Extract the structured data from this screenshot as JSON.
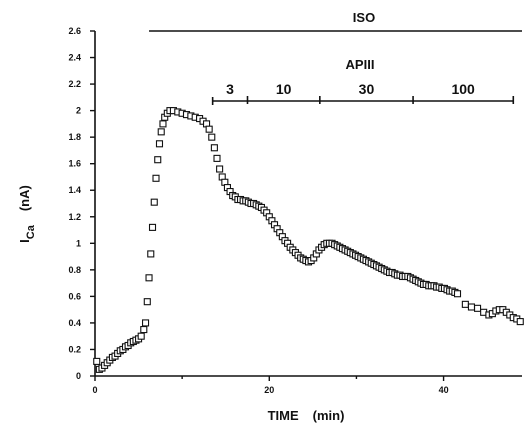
{
  "chart_data": {
    "type": "scatter",
    "title": "",
    "xlabel": "TIME",
    "xlabel_unit": "(min)",
    "ylabel_main": "I",
    "ylabel_sub": "Ca",
    "ylabel_unit": "(nA)",
    "xlim": [
      0,
      49
    ],
    "ylim": [
      0,
      2.6
    ],
    "x_ticks": [
      0,
      20,
      40
    ],
    "y_ticks": [
      0,
      0.2,
      0.4,
      0.6,
      0.8,
      1,
      1.2,
      1.4,
      1.6,
      1.8,
      2,
      2.2,
      2.4,
      2.6
    ],
    "y_tick_labels": [
      "0",
      "0.2",
      "0.4",
      "0.6",
      "0.8",
      "1",
      "1.2",
      "1.4",
      "1.6",
      "1.8",
      "2",
      "2.2",
      "2.4",
      "2.6"
    ],
    "x_minor_ticks": [
      10,
      30
    ],
    "grid": false,
    "marker": "open-square",
    "annotations": {
      "iso": {
        "label": "ISO",
        "x_start": 6.2,
        "x_end": 49
      },
      "apiii": {
        "label": "APIII",
        "x_start": 13.5,
        "x_end": 48,
        "segments": [
          {
            "label": "3",
            "x_start": 13.5,
            "x_end": 17.5
          },
          {
            "label": "10",
            "x_start": 17.5,
            "x_end": 25.8
          },
          {
            "label": "30",
            "x_start": 25.8,
            "x_end": 36.5
          },
          {
            "label": "100",
            "x_start": 36.5,
            "x_end": 48
          }
        ],
        "dividers": [
          17.5,
          25.8,
          36.5
        ]
      }
    },
    "series": [
      {
        "x": [
          0.2,
          0.5,
          0.8,
          1.1,
          1.4,
          1.7,
          2.0,
          2.3,
          2.6,
          2.9,
          3.2,
          3.5,
          3.8,
          4.1,
          4.4,
          4.7,
          5.0,
          5.3,
          5.6,
          5.8,
          6.0,
          6.2,
          6.4,
          6.6,
          6.8,
          7.0,
          7.2,
          7.4,
          7.6,
          7.8,
          8.0,
          8.3,
          8.6,
          9.0,
          9.5,
          10.0,
          10.5,
          11.0,
          11.5,
          12.0,
          12.4,
          12.8,
          13.1,
          13.4,
          13.7,
          14.0,
          14.3,
          14.6,
          14.9,
          15.2,
          15.5,
          15.8,
          16.1,
          16.4,
          16.7,
          17.0,
          17.3,
          17.6,
          17.9,
          18.2,
          18.5,
          18.8,
          19.1,
          19.4,
          19.7,
          20.0,
          20.3,
          20.6,
          20.9,
          21.2,
          21.5,
          21.8,
          22.1,
          22.4,
          22.7,
          23.0,
          23.3,
          23.6,
          23.9,
          24.2,
          24.5,
          24.8,
          25.1,
          25.4,
          25.7,
          26.0,
          26.3,
          26.6,
          26.9,
          27.2,
          27.5,
          27.8,
          28.1,
          28.4,
          28.7,
          29.0,
          29.3,
          29.6,
          29.9,
          30.2,
          30.5,
          30.8,
          31.1,
          31.4,
          31.7,
          32.0,
          32.3,
          32.6,
          32.9,
          33.2,
          33.5,
          33.8,
          34.1,
          34.4,
          34.7,
          35.0,
          35.3,
          35.6,
          35.9,
          36.2,
          36.5,
          36.8,
          37.1,
          37.4,
          37.7,
          38.0,
          38.3,
          38.6,
          38.9,
          39.2,
          39.5,
          39.8,
          40.1,
          40.4,
          40.7,
          41.0,
          41.3,
          41.6,
          42.5,
          43.2,
          43.9,
          44.6,
          45.2,
          45.6,
          46.0,
          46.4,
          46.8,
          47.2,
          47.6,
          48.0,
          48.4,
          48.8
        ],
        "y": [
          0.11,
          0.05,
          0.06,
          0.08,
          0.1,
          0.12,
          0.14,
          0.15,
          0.17,
          0.19,
          0.2,
          0.22,
          0.23,
          0.25,
          0.26,
          0.27,
          0.28,
          0.3,
          0.35,
          0.4,
          0.56,
          0.74,
          0.92,
          1.12,
          1.31,
          1.49,
          1.63,
          1.75,
          1.84,
          1.9,
          1.95,
          1.98,
          2.0,
          2.0,
          1.99,
          1.98,
          1.97,
          1.96,
          1.95,
          1.94,
          1.92,
          1.9,
          1.86,
          1.8,
          1.72,
          1.64,
          1.56,
          1.5,
          1.46,
          1.42,
          1.39,
          1.36,
          1.35,
          1.33,
          1.33,
          1.32,
          1.32,
          1.31,
          1.3,
          1.3,
          1.29,
          1.28,
          1.27,
          1.25,
          1.23,
          1.2,
          1.17,
          1.14,
          1.11,
          1.08,
          1.05,
          1.02,
          1.0,
          0.97,
          0.95,
          0.93,
          0.91,
          0.89,
          0.88,
          0.87,
          0.86,
          0.87,
          0.89,
          0.92,
          0.95,
          0.97,
          0.99,
          1.0,
          1.0,
          1.0,
          0.99,
          0.98,
          0.97,
          0.96,
          0.95,
          0.94,
          0.93,
          0.92,
          0.91,
          0.9,
          0.89,
          0.88,
          0.87,
          0.86,
          0.85,
          0.84,
          0.83,
          0.82,
          0.81,
          0.8,
          0.79,
          0.78,
          0.78,
          0.77,
          0.76,
          0.76,
          0.75,
          0.75,
          0.75,
          0.74,
          0.73,
          0.72,
          0.71,
          0.7,
          0.69,
          0.69,
          0.68,
          0.68,
          0.68,
          0.67,
          0.67,
          0.66,
          0.66,
          0.65,
          0.64,
          0.64,
          0.63,
          0.62,
          0.54,
          0.52,
          0.51,
          0.48,
          0.46,
          0.47,
          0.49,
          0.5,
          0.5,
          0.48,
          0.46,
          0.44,
          0.43,
          0.41
        ]
      }
    ]
  }
}
